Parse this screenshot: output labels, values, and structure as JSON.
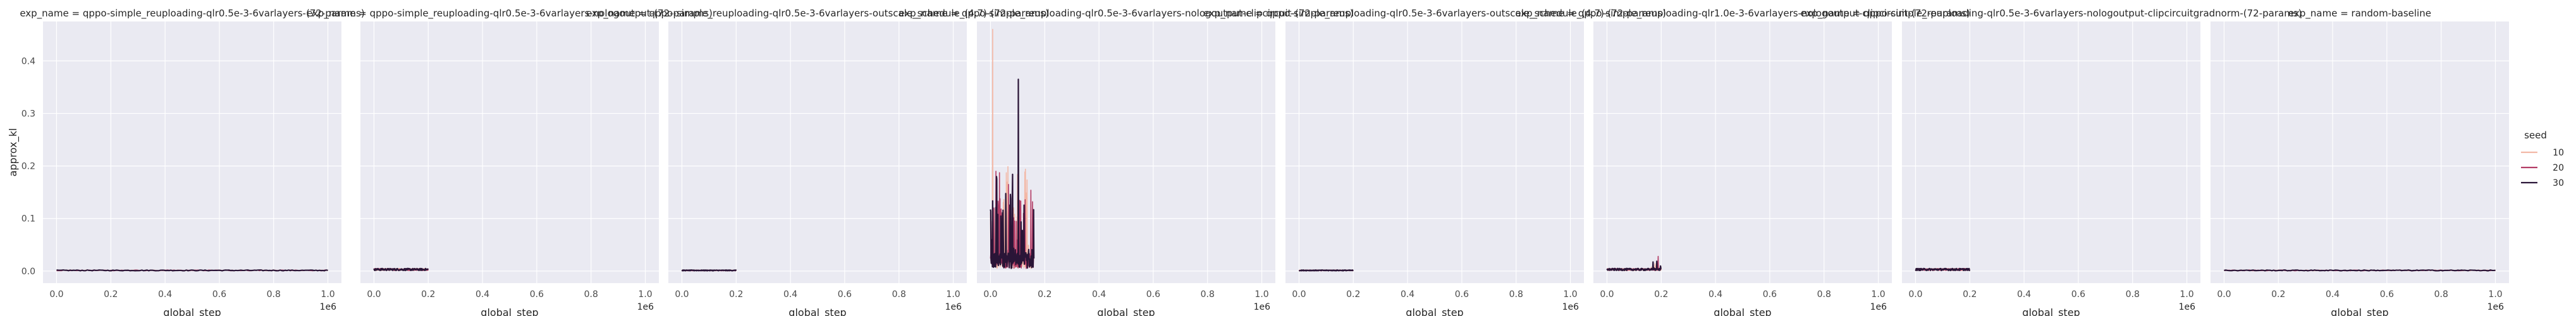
{
  "chart_data": {
    "type": "line",
    "panels": [
      {
        "title": "exp_name = qppo-simple_reuploading-qlr0.5e-3-6varlayers-(72-params)",
        "xmax": 1000000,
        "pattern": "flat"
      },
      {
        "title": "exp_name = qppo-simple_reuploading-qlr0.5e-3-6varlayers-nologoutput-(72-params)",
        "xmax": 200000,
        "pattern": "tiny"
      },
      {
        "title": "exp_name = qppo-simple_reuploading-qlr0.5e-3-6varlayers-outscale_schedule_(4.7)-(72-params)",
        "xmax": 200000,
        "pattern": "flat"
      },
      {
        "title": "exp_name = qppo-simple_reuploading-qlr0.5e-3-6varlayers-nologoutput-clipcircuit-(72-params)",
        "xmax": 160000,
        "pattern": "spiky"
      },
      {
        "title": "exp_name = qppo-simple_reuploading-qlr0.5e-3-6varlayers-outscale_schedule_(4.7)-(72-params)",
        "xmax": 200000,
        "pattern": "flat"
      },
      {
        "title": "exp_name = qppo-simple_reuploading-qlr1.0e-3-6varlayers-nologoutput-clipcircuit-(72-params)",
        "xmax": 200000,
        "pattern": "small_peak"
      },
      {
        "title": "exp_name = qppo-simple_reuploading-qlr0.5e-3-6varlayers-nologoutput-clipcircuitgradnorm-(72-params)",
        "xmax": 200000,
        "pattern": "tiny"
      },
      {
        "title": "exp_name = random-baseline",
        "xmax": 1000000,
        "pattern": "flat"
      }
    ],
    "x_ticks": [
      "0.0",
      "0.2",
      "0.4",
      "0.6",
      "0.8",
      "1.0"
    ],
    "x_scale_label": "1e6",
    "y_ticks": [
      "0.0",
      "0.1",
      "0.2",
      "0.3",
      "0.4"
    ],
    "xlabel": "global_step",
    "ylabel": "approx_kl",
    "xlim": [
      -50000,
      1050000
    ],
    "ylim": [
      -0.023,
      0.475
    ],
    "legend": {
      "title": "seed",
      "placement": "right",
      "entries": [
        "10",
        "20",
        "30"
      ]
    },
    "series_colors": {
      "10": "#f3b8a6",
      "20": "#b33d66",
      "30": "#2a1537"
    },
    "grid": true,
    "panel_background": "#eaeaf2"
  }
}
